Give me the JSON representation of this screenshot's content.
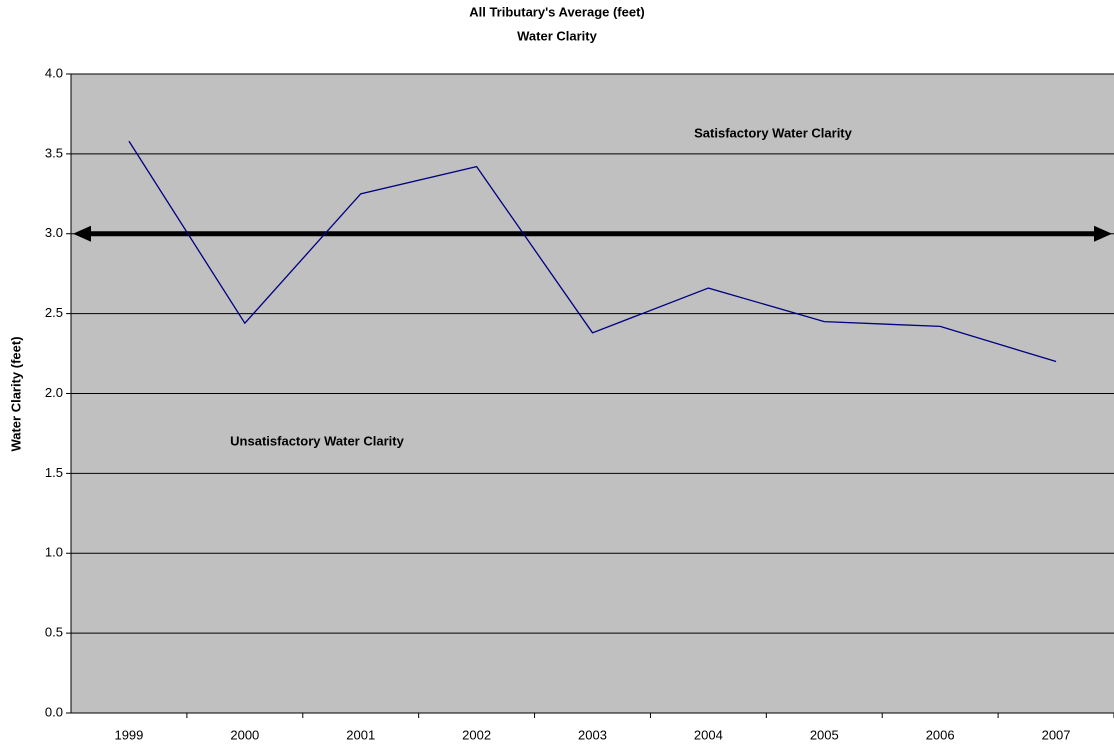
{
  "chart_data": {
    "type": "line",
    "title": "All Tributary's Average (feet)",
    "subtitle": "Water Clarity",
    "y_label": "Water Clarity (feet)",
    "annotations": [
      "Satisfactory Water Clarity",
      "Unsatisfactory Water Clarity"
    ],
    "categories": [
      "1999",
      "2000",
      "2001",
      "2002",
      "2003",
      "2004",
      "2005",
      "2006",
      "2007"
    ],
    "series": [
      {
        "name": "Water Clarity",
        "color": "#000080",
        "values": [
          3.58,
          2.44,
          3.25,
          3.42,
          2.38,
          2.66,
          2.45,
          2.42,
          2.2
        ]
      }
    ],
    "reference_line": 3,
    "ylim": [
      0,
      4
    ],
    "yticks": [
      {
        "value": 0,
        "label": "0.0"
      },
      0.5,
      {
        "value": 1,
        "label": "1.0"
      },
      1.5,
      {
        "value": 2,
        "label": "2.0"
      },
      2.5,
      {
        "value": 3,
        "label": "3.0"
      },
      3.5,
      {
        "value": 4,
        "label": "4.0"
      }
    ],
    "grid": true,
    "background": "#c0c0c0"
  }
}
